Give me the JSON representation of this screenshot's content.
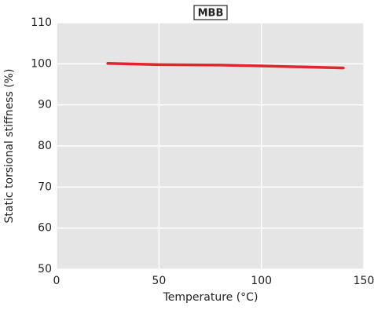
{
  "chart_data": {
    "type": "line",
    "title": "MBB",
    "x_label": "Temperature (°C)",
    "y_label": "Static torsional stiffness (%)",
    "series": [
      {
        "name": "MBB",
        "color": "#e0262c",
        "x": [
          25,
          50,
          80,
          100,
          140
        ],
        "values": [
          100.1,
          99.8,
          99.7,
          99.5,
          99.0
        ]
      }
    ],
    "xlim": [
      0,
      150
    ],
    "xticks": [
      0,
      50,
      100,
      150
    ],
    "ylim": [
      50,
      110
    ],
    "yticks": [
      50,
      60,
      70,
      80,
      90,
      100,
      110
    ],
    "grid": true
  }
}
